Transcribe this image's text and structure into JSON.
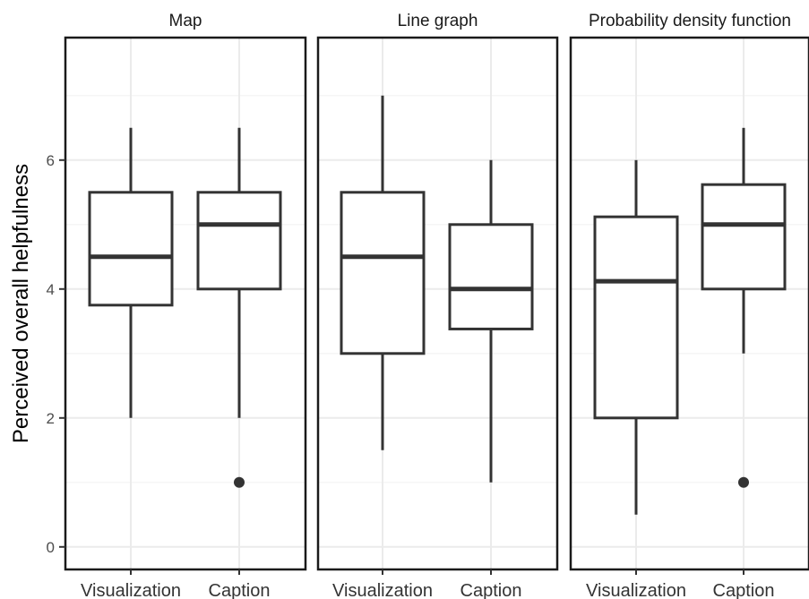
{
  "chart_data": {
    "type": "boxplot",
    "ylabel": "Perceived overall helpfulness",
    "xlabel": "",
    "ylim": [
      -0.35,
      7.9
    ],
    "yticks": [
      0,
      2,
      4,
      6
    ],
    "grid": true,
    "categories": [
      "Visualization",
      "Caption"
    ],
    "panels": [
      {
        "title": "Map",
        "boxes": [
          {
            "category": "Visualization",
            "whisker_low": 2,
            "q1": 3.75,
            "median": 4.5,
            "q3": 5.5,
            "whisker_high": 6.5,
            "outliers": []
          },
          {
            "category": "Caption",
            "whisker_low": 2,
            "q1": 4,
            "median": 5,
            "q3": 5.5,
            "whisker_high": 6.5,
            "outliers": [
              1
            ]
          }
        ]
      },
      {
        "title": "Line graph",
        "boxes": [
          {
            "category": "Visualization",
            "whisker_low": 1.5,
            "q1": 3,
            "median": 4.5,
            "q3": 5.5,
            "whisker_high": 7,
            "outliers": []
          },
          {
            "category": "Caption",
            "whisker_low": 1,
            "q1": 3.38,
            "median": 4,
            "q3": 5,
            "whisker_high": 6,
            "outliers": []
          }
        ]
      },
      {
        "title": "Probability density function",
        "boxes": [
          {
            "category": "Visualization",
            "whisker_low": 0.5,
            "q1": 2,
            "median": 4.12,
            "q3": 5.12,
            "whisker_high": 6,
            "outliers": []
          },
          {
            "category": "Caption",
            "whisker_low": 3,
            "q1": 4,
            "median": 5,
            "q3": 5.62,
            "whisker_high": 6.5,
            "outliers": [
              1
            ]
          }
        ]
      }
    ]
  }
}
